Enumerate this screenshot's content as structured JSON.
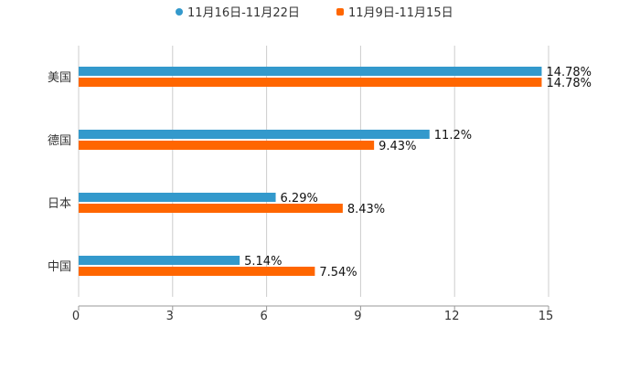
{
  "chart_data": {
    "type": "bar",
    "orientation": "horizontal",
    "categories": [
      "美国",
      "德国",
      "日本",
      "中国"
    ],
    "series": [
      {
        "name": "11月16日-11月22日",
        "color": "#3399cc",
        "values": [
          14.78,
          11.2,
          6.29,
          5.14
        ],
        "labels": [
          "14.78%",
          "11.2%",
          "6.29%",
          "5.14%"
        ]
      },
      {
        "name": "11月9日-11月15日",
        "color": "#ff6600",
        "values": [
          14.78,
          9.43,
          8.43,
          7.54
        ],
        "labels": [
          "14.78%",
          "9.43%",
          "8.43%",
          "7.54%"
        ]
      }
    ],
    "xlim": [
      0,
      15
    ],
    "xticks": [
      0,
      3,
      6,
      9,
      12,
      15
    ],
    "xtick_labels": [
      "0",
      "3",
      "6",
      "9",
      "12",
      "15"
    ],
    "grid": true,
    "legend_position": "top-center",
    "title": "",
    "xlabel": "",
    "ylabel": ""
  }
}
